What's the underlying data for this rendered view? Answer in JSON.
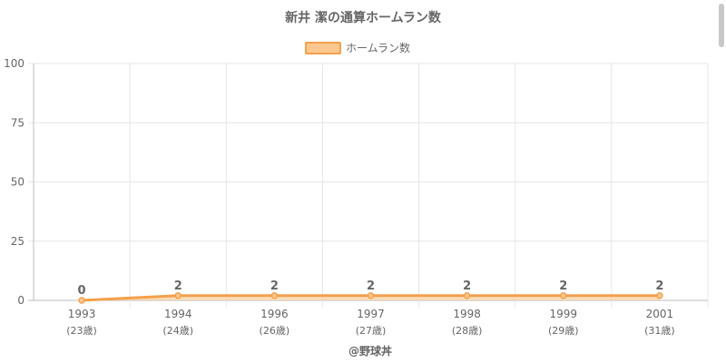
{
  "chart_data": {
    "type": "line",
    "title": "新井 潔の通算ホームラン数",
    "categories": [
      "1993",
      "1994",
      "1996",
      "1997",
      "1998",
      "1999",
      "2001"
    ],
    "sub_labels": [
      "(23歳)",
      "(24歳)",
      "(26歳)",
      "(27歳)",
      "(28歳)",
      "(29歳)",
      "(31歳)"
    ],
    "series": [
      {
        "name": "ホームラン数",
        "values": [
          0,
          2,
          2,
          2,
          2,
          2,
          2
        ]
      }
    ],
    "ylim": [
      0,
      100
    ],
    "yticks": [
      0,
      25,
      50,
      75,
      100
    ],
    "grid": true,
    "legend_position": "top",
    "line_color": "#f5a04c",
    "fill_color": "#fcc890",
    "credit": "@野球丼"
  }
}
